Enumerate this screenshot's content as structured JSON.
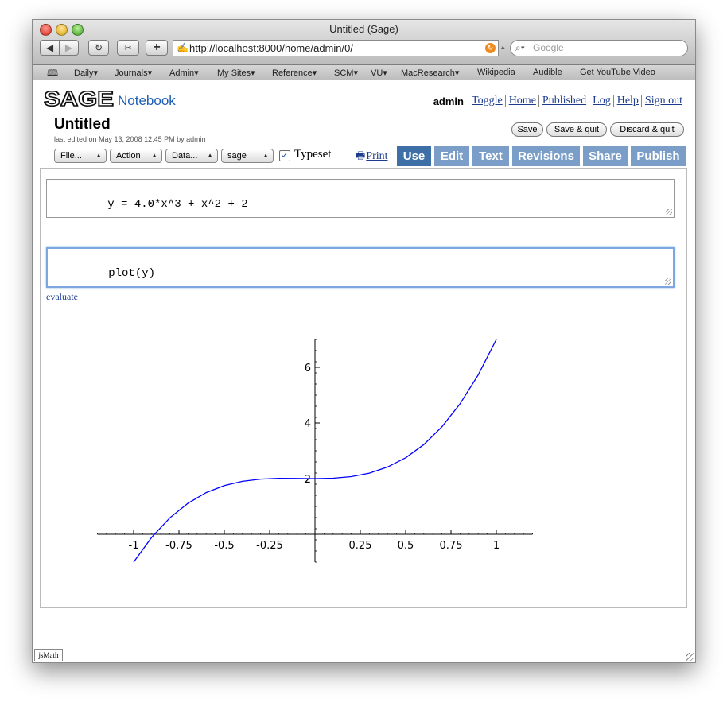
{
  "window": {
    "title": "Untitled (Sage)"
  },
  "browser": {
    "url": "http://localhost:8000/home/admin/0/",
    "search_placeholder": "Google",
    "bookmarks": [
      "Daily▾",
      "Journals▾",
      "Admin▾",
      "My Sites▾",
      "Reference▾",
      "SCM▾",
      "VU▾",
      "MacResearch▾",
      "Wikipedia",
      "Audible",
      "Get YouTube Video"
    ]
  },
  "header": {
    "logo_text": "SAGE",
    "notebook_label": "Notebook",
    "user": "admin",
    "links": [
      "Toggle",
      "Home",
      "Published",
      "Log",
      "Help",
      "Sign out"
    ]
  },
  "worksheet": {
    "title": "Untitled",
    "last_edited": "last edited on May 13, 2008 12:45 PM by admin",
    "buttons": {
      "save": "Save",
      "save_quit": "Save & quit",
      "discard_quit": "Discard & quit"
    },
    "menus": {
      "file": "File...",
      "action": "Action",
      "data": "Data...",
      "system": "sage"
    },
    "typeset_label": "Typeset",
    "typeset_checked": "✓",
    "print_label": "Print",
    "tabs": {
      "use": "Use",
      "edit": "Edit",
      "text": "Text",
      "revisions": "Revisions",
      "share": "Share",
      "publish": "Publish"
    }
  },
  "cells": [
    {
      "input": "y = 4.0*x^3 + x^2 + 2"
    },
    {
      "input": "plot(y)",
      "evaluate_label": "evaluate"
    }
  ],
  "chart_data": {
    "type": "line",
    "title": "",
    "xlabel": "",
    "ylabel": "",
    "function": "y = 4.0*x^3 + x^2 + 2",
    "xlim": [
      -1.2,
      1.2
    ],
    "ylim": [
      -1,
      7
    ],
    "x_ticks": [
      -1,
      -0.75,
      -0.5,
      -0.25,
      0.25,
      0.5,
      0.75,
      1
    ],
    "x_tick_labels": [
      "-1",
      "-0.75",
      "-0.5",
      "-0.25",
      "0.25",
      "0.5",
      "0.75",
      "1"
    ],
    "y_ticks": [
      2,
      4,
      6
    ],
    "y_tick_labels": [
      "2",
      "4",
      "6"
    ],
    "series": [
      {
        "color": "#0000ff",
        "x": [
          -1,
          -0.9,
          -0.8,
          -0.7,
          -0.6,
          -0.5,
          -0.4,
          -0.3,
          -0.2,
          -0.1,
          0,
          0.1,
          0.2,
          0.3,
          0.4,
          0.5,
          0.6,
          0.7,
          0.8,
          0.9,
          1
        ],
        "y": [
          -1,
          -0.106,
          0.592,
          1.118,
          1.496,
          1.75,
          1.904,
          1.982,
          2.008,
          2.006,
          2,
          2.014,
          2.072,
          2.198,
          2.416,
          2.75,
          3.224,
          3.862,
          4.688,
          5.726,
          7
        ]
      }
    ]
  },
  "footer": {
    "jsmath_label": "jsMath"
  }
}
